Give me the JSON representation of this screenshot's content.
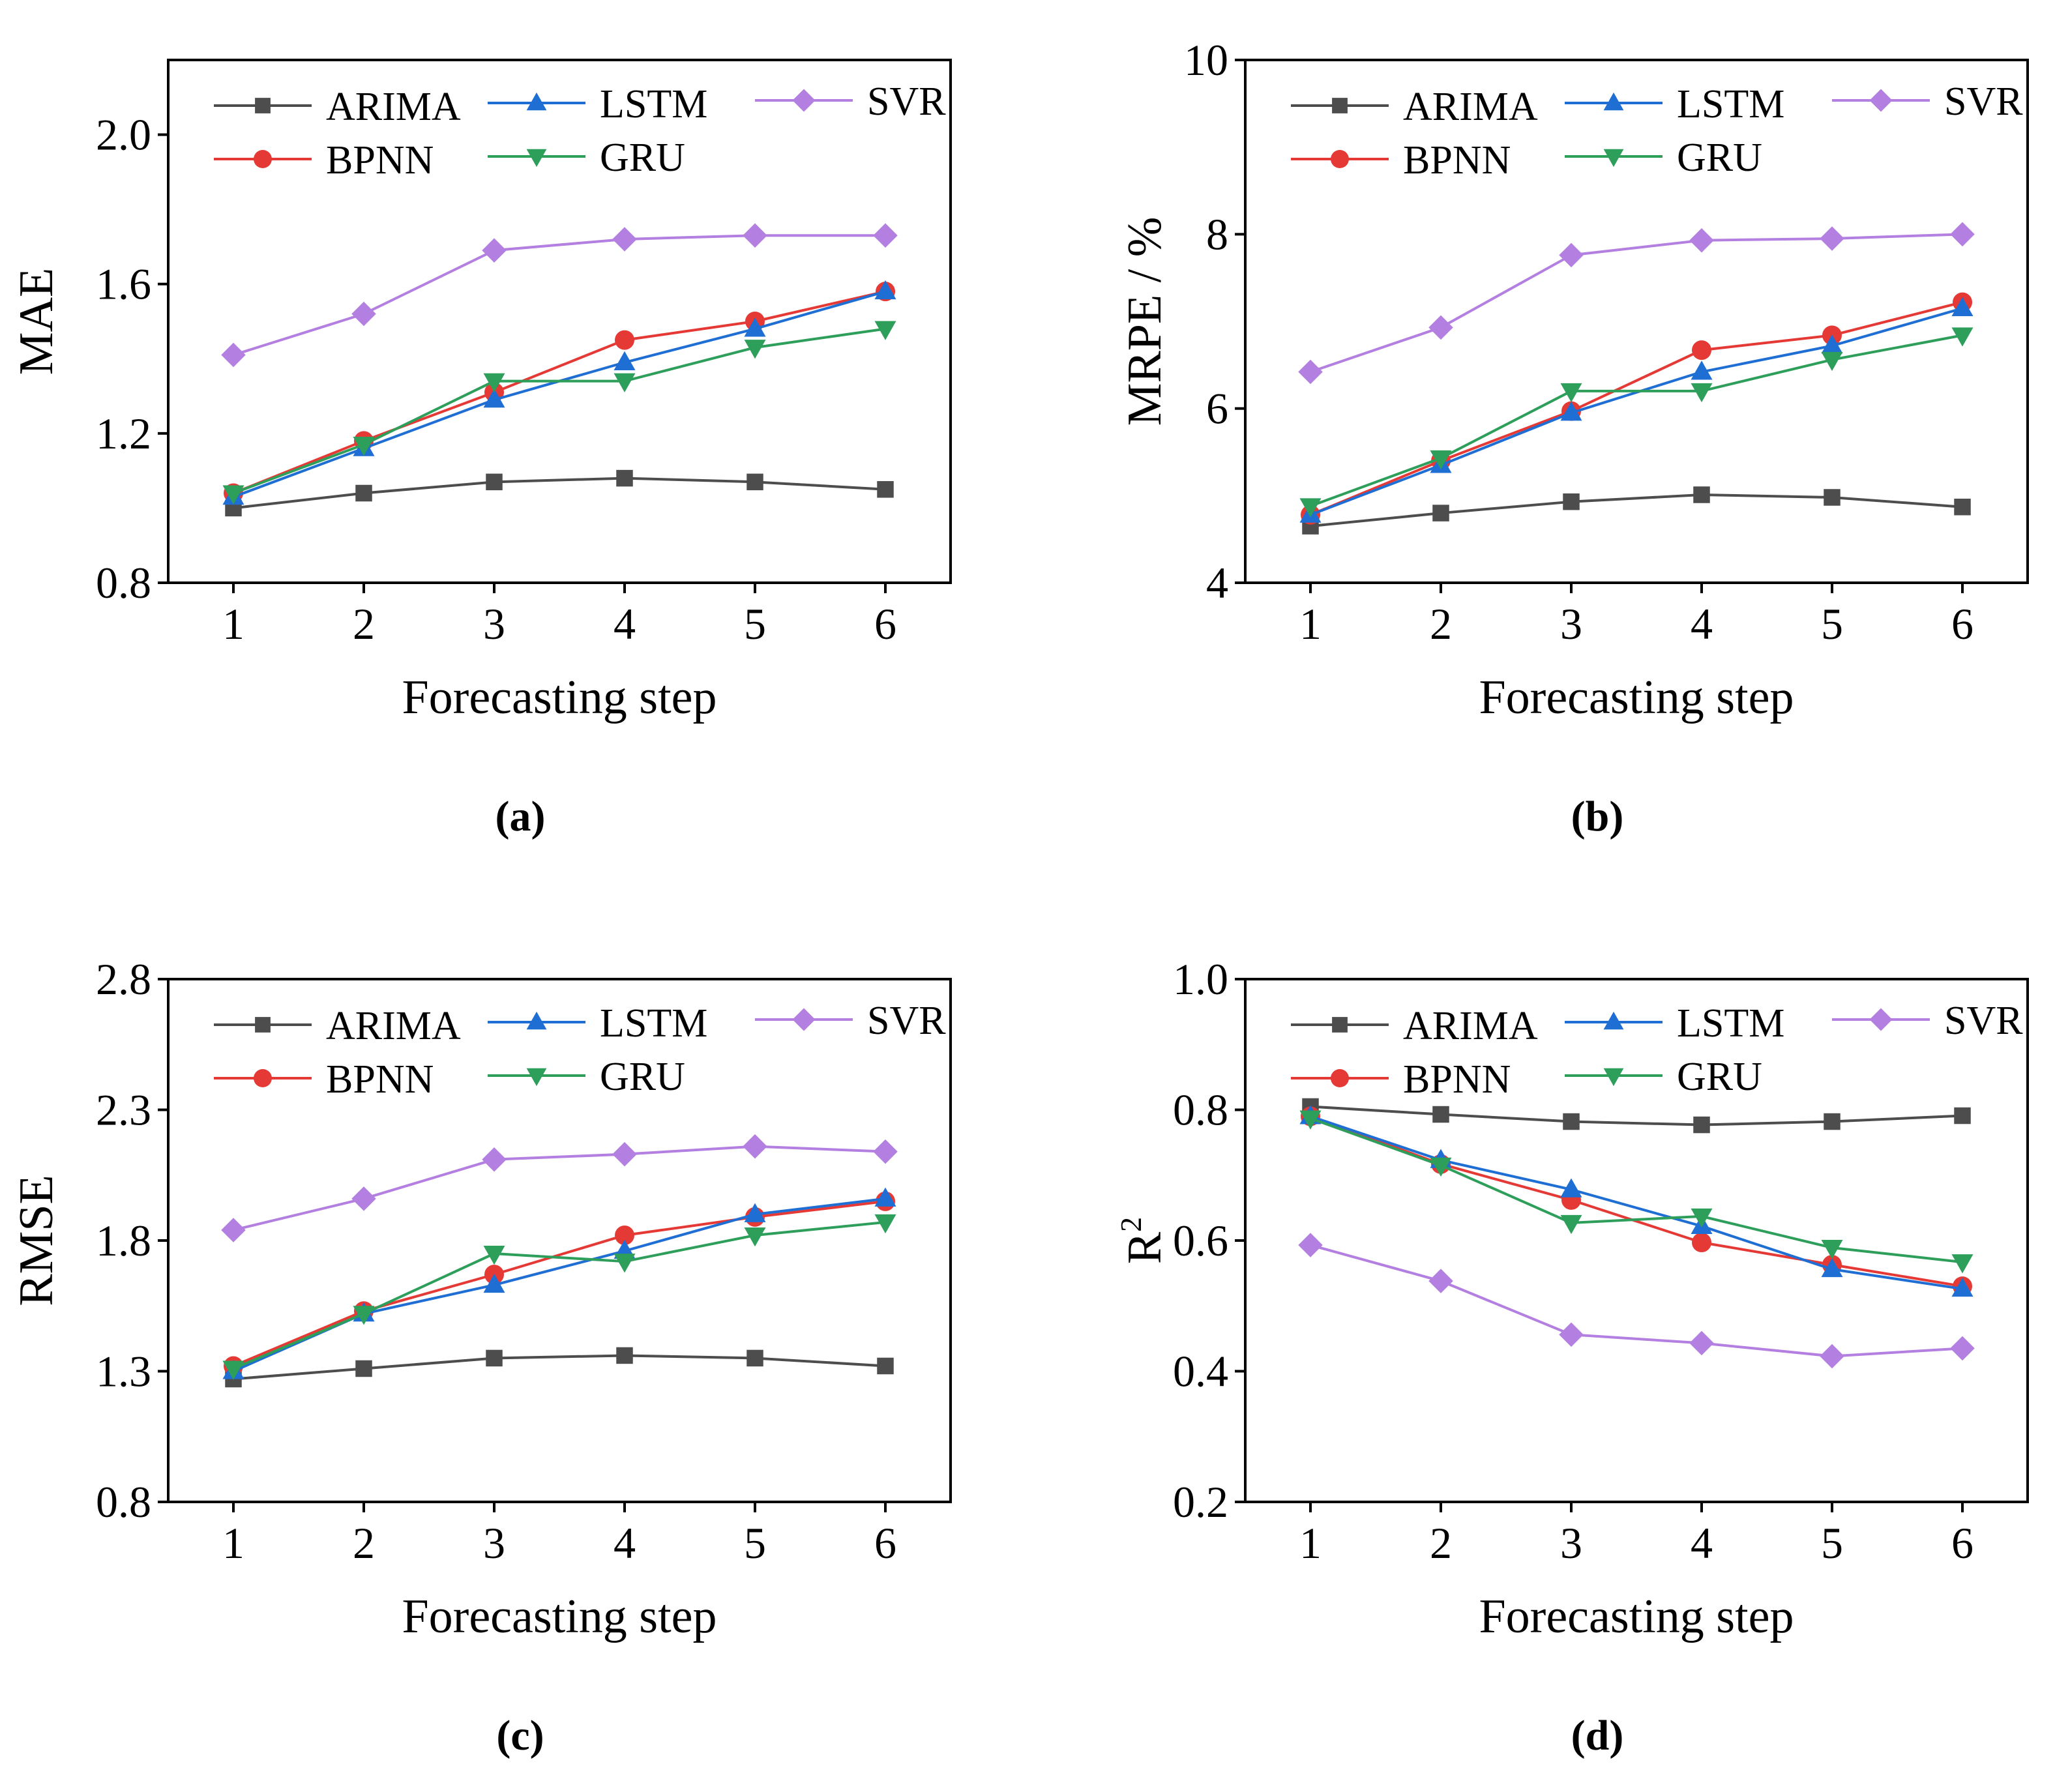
{
  "figure": {
    "colors": {
      "ARIMA": "#4d4d4d",
      "BPNN": "#e53935",
      "LSTM": "#1f6ed4",
      "GRU": "#2e9e5b",
      "SVR": "#b37fe0"
    },
    "markers": {
      "ARIMA": "square",
      "BPNN": "circle",
      "LSTM": "triangle-up",
      "GRU": "triangle-down",
      "SVR": "diamond"
    }
  },
  "chart_data": [
    {
      "id": "a",
      "type": "line",
      "panel_label": "(a)",
      "xlabel": "Forecasting step",
      "ylabel": "MAE",
      "ylim": [
        0.8,
        2.2
      ],
      "yticks": [
        "0.8",
        "1.2",
        "1.6",
        "2.0"
      ],
      "x": [
        1,
        2,
        3,
        4,
        5,
        6
      ],
      "xticks": [
        "1",
        "2",
        "3",
        "4",
        "5",
        "6"
      ],
      "legend_position": "top",
      "series": [
        {
          "name": "ARIMA",
          "values": [
            1.0,
            1.04,
            1.07,
            1.08,
            1.07,
            1.05
          ]
        },
        {
          "name": "BPNN",
          "values": [
            1.04,
            1.18,
            1.31,
            1.45,
            1.5,
            1.58
          ]
        },
        {
          "name": "LSTM",
          "values": [
            1.03,
            1.16,
            1.29,
            1.39,
            1.48,
            1.58
          ]
        },
        {
          "name": "GRU",
          "values": [
            1.04,
            1.17,
            1.34,
            1.34,
            1.43,
            1.48
          ]
        },
        {
          "name": "SVR",
          "values": [
            1.41,
            1.52,
            1.69,
            1.72,
            1.73,
            1.73
          ]
        }
      ]
    },
    {
      "id": "b",
      "type": "line",
      "panel_label": "(b)",
      "xlabel": "Forecasting step",
      "ylabel": "MRPE / %",
      "ylim": [
        4,
        10
      ],
      "yticks": [
        "4",
        "6",
        "8",
        "10"
      ],
      "x": [
        1,
        2,
        3,
        4,
        5,
        6
      ],
      "xticks": [
        "1",
        "2",
        "3",
        "4",
        "5",
        "6"
      ],
      "legend_position": "top",
      "series": [
        {
          "name": "ARIMA",
          "values": [
            4.65,
            4.8,
            4.93,
            5.01,
            4.98,
            4.87
          ]
        },
        {
          "name": "BPNN",
          "values": [
            4.78,
            5.4,
            5.97,
            6.67,
            6.84,
            7.22
          ]
        },
        {
          "name": "LSTM",
          "values": [
            4.78,
            5.35,
            5.95,
            6.42,
            6.72,
            7.15
          ]
        },
        {
          "name": "GRU",
          "values": [
            4.88,
            5.43,
            6.2,
            6.2,
            6.56,
            6.84
          ]
        },
        {
          "name": "SVR",
          "values": [
            6.42,
            6.93,
            7.76,
            7.93,
            7.95,
            8.0
          ]
        }
      ]
    },
    {
      "id": "c",
      "type": "line",
      "panel_label": "(c)",
      "xlabel": "Forecasting step",
      "ylabel": "RMSE",
      "ylim": [
        0.8,
        2.8
      ],
      "yticks": [
        "0.8",
        "1.3",
        "1.8",
        "2.3",
        "2.8"
      ],
      "x": [
        1,
        2,
        3,
        4,
        5,
        6
      ],
      "xticks": [
        "1",
        "2",
        "3",
        "4",
        "5",
        "6"
      ],
      "legend_position": "top",
      "series": [
        {
          "name": "ARIMA",
          "values": [
            1.27,
            1.31,
            1.35,
            1.36,
            1.35,
            1.32
          ]
        },
        {
          "name": "BPNN",
          "values": [
            1.32,
            1.53,
            1.67,
            1.82,
            1.89,
            1.95
          ]
        },
        {
          "name": "LSTM",
          "values": [
            1.3,
            1.52,
            1.63,
            1.76,
            1.9,
            1.96
          ]
        },
        {
          "name": "GRU",
          "values": [
            1.31,
            1.52,
            1.75,
            1.72,
            1.82,
            1.87
          ]
        },
        {
          "name": "SVR",
          "values": [
            1.84,
            1.96,
            2.11,
            2.13,
            2.16,
            2.14
          ]
        }
      ]
    },
    {
      "id": "d",
      "type": "line",
      "panel_label": "(d)",
      "xlabel": "Forecasting step",
      "ylabel": "R",
      "ylabel_superscript": "2",
      "ylim": [
        0.2,
        1.0
      ],
      "yticks": [
        "0.2",
        "0.4",
        "0.6",
        "0.8",
        "1.0"
      ],
      "x": [
        1,
        2,
        3,
        4,
        5,
        6
      ],
      "xticks": [
        "1",
        "2",
        "3",
        "4",
        "5",
        "6"
      ],
      "legend_position": "top",
      "series": [
        {
          "name": "ARIMA",
          "values": [
            0.805,
            0.793,
            0.782,
            0.777,
            0.782,
            0.791
          ]
        },
        {
          "name": "BPNN",
          "values": [
            0.79,
            0.717,
            0.662,
            0.597,
            0.563,
            0.53
          ]
        },
        {
          "name": "LSTM",
          "values": [
            0.79,
            0.723,
            0.678,
            0.622,
            0.556,
            0.526
          ]
        },
        {
          "name": "GRU",
          "values": [
            0.787,
            0.715,
            0.627,
            0.637,
            0.589,
            0.567
          ]
        },
        {
          "name": "SVR",
          "values": [
            0.593,
            0.538,
            0.456,
            0.443,
            0.423,
            0.435
          ]
        }
      ]
    }
  ]
}
